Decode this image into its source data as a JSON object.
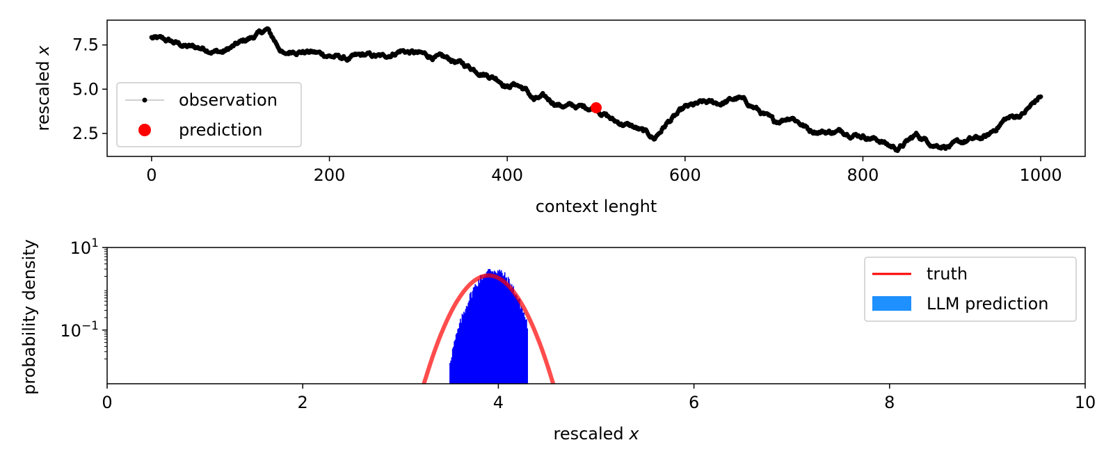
{
  "chart_data": [
    {
      "type": "line",
      "xlabel": "context lenght",
      "ylabel_text": "rescaled",
      "ylabel_var": "x",
      "xlim": [
        -50,
        1050
      ],
      "ylim": [
        1.2,
        8.9
      ],
      "xticks": [
        0,
        200,
        400,
        600,
        800,
        1000
      ],
      "xtick_labels": [
        "0",
        "200",
        "400",
        "600",
        "800",
        "1000"
      ],
      "yticks": [
        2.5,
        5.0,
        7.5
      ],
      "ytick_labels": [
        "2.5",
        "5.0",
        "7.5"
      ],
      "legend_position": "lower-left",
      "series": [
        {
          "name": "observation",
          "color": "#000000",
          "marker": "dot",
          "anchors_x": [
            0,
            20,
            40,
            60,
            80,
            100,
            120,
            130,
            140,
            150,
            160,
            180,
            200,
            220,
            240,
            260,
            280,
            300,
            320,
            340,
            360,
            380,
            390,
            400,
            410,
            420,
            430,
            440,
            460,
            480,
            500,
            510,
            520,
            540,
            560,
            565,
            580,
            600,
            620,
            640,
            660,
            680,
            700,
            720,
            740,
            760,
            780,
            800,
            820,
            830,
            840,
            860,
            880,
            900,
            920,
            940,
            960,
            980,
            1000
          ],
          "anchors_y": [
            7.9,
            7.7,
            7.4,
            7.3,
            7.1,
            7.6,
            8.1,
            8.35,
            7.6,
            6.9,
            7.2,
            7.1,
            6.9,
            6.7,
            6.9,
            6.8,
            7.2,
            7.0,
            6.8,
            6.6,
            6.2,
            5.8,
            5.6,
            5.2,
            5.3,
            5.0,
            4.4,
            4.5,
            4.1,
            4.0,
            3.95,
            3.6,
            3.2,
            2.9,
            2.4,
            2.2,
            3.1,
            3.9,
            4.2,
            4.2,
            4.5,
            3.9,
            3.1,
            3.5,
            2.7,
            2.6,
            2.6,
            2.4,
            2.1,
            1.8,
            1.65,
            2.4,
            1.9,
            1.8,
            2.1,
            2.3,
            3.3,
            3.6,
            4.6
          ],
          "noise_amplitude": 0.18
        },
        {
          "name": "prediction",
          "color": "#ff0000",
          "marker": "large-dot",
          "x": [
            500
          ],
          "y": [
            3.95
          ]
        }
      ]
    },
    {
      "type": "area",
      "xlabel_text": "rescaled",
      "xlabel_var": "x",
      "ylabel": "probability density",
      "xlim": [
        0,
        10
      ],
      "ylim_log": [
        0.005,
        10
      ],
      "yscale": "log",
      "xticks": [
        0,
        2,
        4,
        6,
        8,
        10
      ],
      "xtick_labels": [
        "0",
        "2",
        "4",
        "6",
        "8",
        "10"
      ],
      "yticks": [
        0.1,
        10
      ],
      "ytick_base": "10",
      "ytick_exponents": [
        "−1",
        "1"
      ],
      "legend_position": "upper-right",
      "series": [
        {
          "name": "truth",
          "color": "#ff0000",
          "kind": "line",
          "mean": 3.9,
          "std": 0.19
        },
        {
          "name": "LLM prediction",
          "color": "#1e90ff",
          "fill_color": "#0000ff",
          "kind": "histogram",
          "mean": 3.95,
          "std": 0.14,
          "bin_range": [
            3.5,
            4.3
          ],
          "bins": 90
        }
      ]
    }
  ]
}
